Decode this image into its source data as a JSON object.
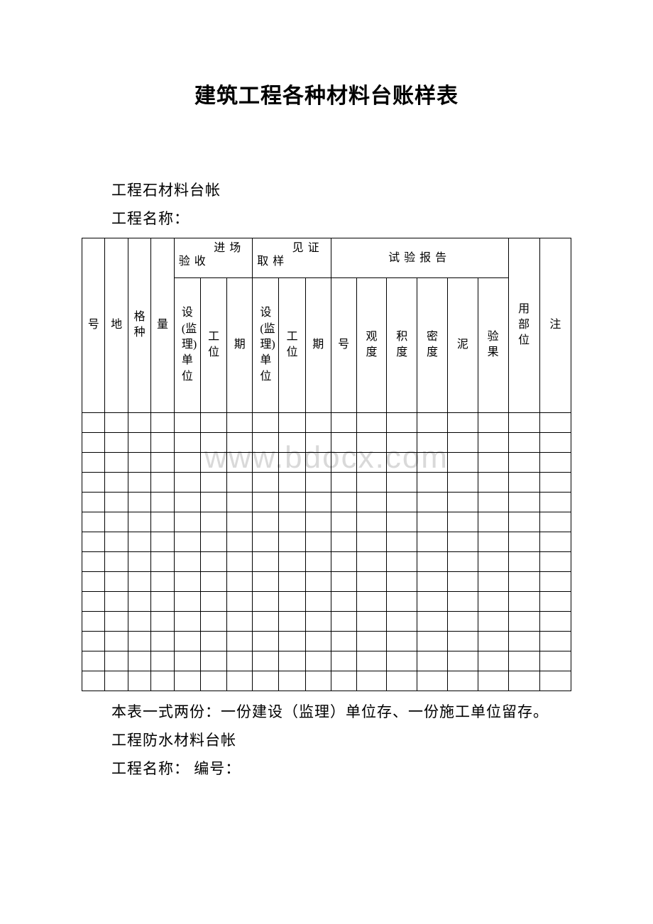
{
  "title": "建筑工程各种材料台账样表",
  "line1": "工程石材料台帐",
  "line2": "工程名称：",
  "watermark": "www.bdocx.com",
  "footer1": "本表一式两份：一份建设（监理）单位存、一份施工单位留存。",
  "footer2": "工程防水材料台帐",
  "footer3": "工程名称： 编号：",
  "table": {
    "group_headers": {
      "g1_l1": "进场",
      "g1_l2": "验收",
      "g2_l1": "见证",
      "g2_l2": "取样",
      "g3": "试验报告"
    },
    "sub_headers": {
      "c1": "号",
      "c2": "地",
      "c3": "格种",
      "c4": "量",
      "c5": "设(监理)单位",
      "c6": "工位",
      "c7": "期",
      "c8": "设(监理)单位",
      "c9": "工位",
      "c10": "期",
      "c11": "号",
      "c12": "观度",
      "c13": "积度",
      "c14": "密度",
      "c15": "泥",
      "c16": "验果",
      "c17": "用部位",
      "c18": "注"
    },
    "empty_row_count": 14,
    "column_count": 18,
    "col_widths": [
      "4.7%",
      "4.7%",
      "4.7%",
      "4.7%",
      "5.4%",
      "5.4%",
      "5.2%",
      "5.4%",
      "5.4%",
      "5.2%",
      "5.2%",
      "6.2%",
      "6.2%",
      "6.2%",
      "6.2%",
      "6.2%",
      "6.4%",
      "6.4%"
    ],
    "border_color": "#000000",
    "background_color": "#ffffff"
  }
}
